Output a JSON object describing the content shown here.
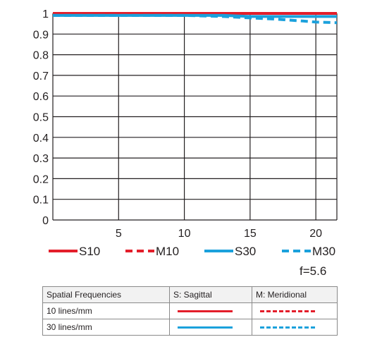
{
  "chart_data": {
    "type": "line",
    "title": "",
    "xlabel": "",
    "ylabel": "",
    "xlim": [
      0,
      21.6
    ],
    "ylim": [
      0,
      1
    ],
    "x_ticks": [
      5,
      10,
      15,
      20
    ],
    "y_ticks": [
      0,
      0.1,
      0.2,
      0.3,
      0.4,
      0.5,
      0.6,
      0.7,
      0.8,
      0.9,
      1
    ],
    "y_tick_labels": [
      "0",
      "0.1",
      "0.2",
      "0.3",
      "0.4",
      "0.5",
      "0.6",
      "0.7",
      "0.8",
      "0.9",
      "1"
    ],
    "grid": true,
    "legend_position": "bottom",
    "series": [
      {
        "name": "S10",
        "color": "#e31e2b",
        "style": "solid",
        "x": [
          0,
          5,
          10,
          15,
          20,
          21.6
        ],
        "y": [
          1.0,
          1.0,
          1.0,
          1.0,
          1.0,
          1.0
        ]
      },
      {
        "name": "M10",
        "color": "#e31e2b",
        "style": "dashed",
        "x": [
          0,
          5,
          10,
          15,
          20,
          21.6
        ],
        "y": [
          1.0,
          1.0,
          1.0,
          1.0,
          1.0,
          1.0
        ]
      },
      {
        "name": "S30",
        "color": "#1ba1dc",
        "style": "solid",
        "x": [
          0,
          5,
          10,
          13,
          15,
          18,
          20,
          21.6
        ],
        "y": [
          0.99,
          0.99,
          0.99,
          0.99,
          0.985,
          0.985,
          0.985,
          0.985
        ]
      },
      {
        "name": "M30",
        "color": "#1ba1dc",
        "style": "dashed",
        "x": [
          0,
          5,
          10,
          13,
          15,
          17,
          19,
          20,
          21.6
        ],
        "y": [
          0.99,
          0.99,
          0.99,
          0.985,
          0.978,
          0.972,
          0.963,
          0.958,
          0.955
        ]
      }
    ]
  },
  "aperture_label": "f=5.6",
  "key_table": {
    "header": [
      "Spatial Frequencies",
      "S: Sagittal",
      "M: Meridional"
    ],
    "rows": [
      {
        "label": "10 lines/mm",
        "color": "#e31e2b"
      },
      {
        "label": "30 lines/mm",
        "color": "#1ba1dc"
      }
    ]
  }
}
